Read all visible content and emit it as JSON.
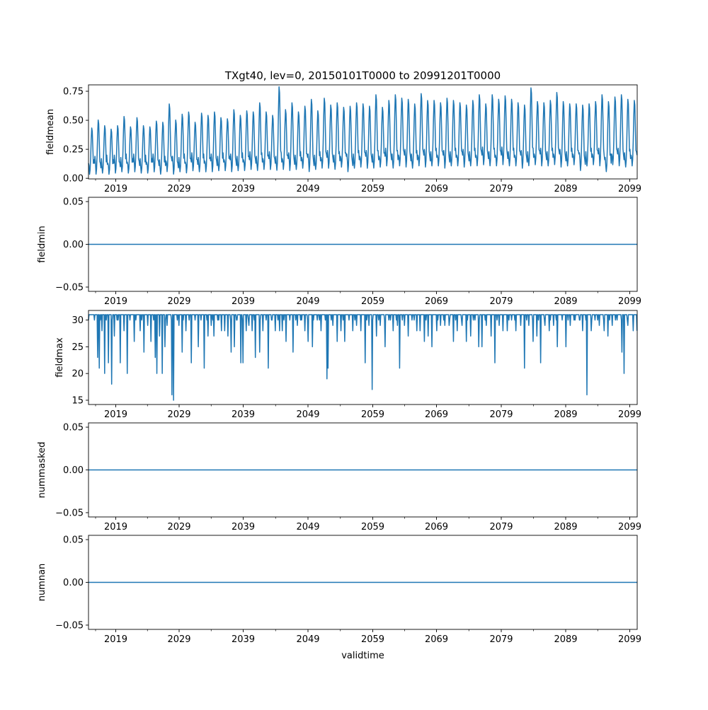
{
  "chart_data": {
    "type": "line",
    "title": "TXgt40, lev=0, 20150101T0000 to 20991201T0000",
    "xlabel": "validtime",
    "x_start": "2015-01",
    "x_end": "2099-12",
    "x_frequency": "monthly",
    "x_tick_labels": [
      "2019",
      "2029",
      "2039",
      "2049",
      "2059",
      "2069",
      "2079",
      "2089",
      "2099"
    ],
    "line_color": "#1f77b4",
    "grid": false,
    "panels": [
      {
        "ylabel": "fieldmean",
        "ylim": [
          -0.005,
          0.805
        ],
        "yticks": [
          "0.00",
          "0.25",
          "0.50",
          "0.75"
        ],
        "yticks_values": [
          0,
          0.25,
          0.5,
          0.75
        ],
        "series": [
          {
            "name": "fieldmean",
            "annual_peaks": [
              0.44,
              0.51,
              0.46,
              0.43,
              0.46,
              0.54,
              0.45,
              0.53,
              0.46,
              0.45,
              0.5,
              0.49,
              0.65,
              0.51,
              0.56,
              0.58,
              0.49,
              0.57,
              0.55,
              0.58,
              0.53,
              0.52,
              0.6,
              0.55,
              0.59,
              0.58,
              0.66,
              0.58,
              0.55,
              0.8,
              0.6,
              0.66,
              0.58,
              0.63,
              0.69,
              0.59,
              0.7,
              0.64,
              0.66,
              0.62,
              0.63,
              0.66,
              0.65,
              0.63,
              0.73,
              0.62,
              0.68,
              0.73,
              0.7,
              0.69,
              0.65,
              0.74,
              0.68,
              0.68,
              0.66,
              0.7,
              0.68,
              0.66,
              0.64,
              0.68,
              0.73,
              0.65,
              0.73,
              0.69,
              0.72,
              0.69,
              0.66,
              0.64,
              0.79,
              0.67,
              0.66,
              0.68,
              0.75,
              0.67,
              0.65,
              0.65,
              0.64,
              0.65,
              0.67,
              0.73,
              0.67,
              0.71,
              0.73,
              0.69,
              0.68
            ],
            "annual_troughs": [
              0.03,
              0.03,
              0.04,
              0.03,
              0.04,
              0.05,
              0.04,
              0.05,
              0.04,
              0.04,
              0.05,
              0.03,
              0.05,
              0.03,
              0.05,
              0.04,
              0.06,
              0.05,
              0.05,
              0.05,
              0.06,
              0.06,
              0.05,
              0.06,
              0.06,
              0.07,
              0.06,
              0.07,
              0.07,
              0.06,
              0.07,
              0.06,
              0.07,
              0.08,
              0.05,
              0.07,
              0.08,
              0.08,
              0.07,
              0.09,
              0.05,
              0.08,
              0.09,
              0.08,
              0.08,
              0.09,
              0.1,
              0.08,
              0.1,
              0.09,
              0.08,
              0.1,
              0.09,
              0.1,
              0.1,
              0.08,
              0.1,
              0.1,
              0.09,
              0.1,
              0.1,
              0.11,
              0.1,
              0.1,
              0.11,
              0.1,
              0.1,
              0.08,
              0.1,
              0.11,
              0.1,
              0.1,
              0.11,
              0.09,
              0.1,
              0.11,
              0.06,
              0.1,
              0.11,
              0.1,
              0.05,
              0.11,
              0.1,
              0.09,
              0.1
            ]
          }
        ]
      },
      {
        "ylabel": "fieldmin",
        "ylim": [
          -0.055,
          0.055
        ],
        "yticks": [
          "−0.05",
          "0.00",
          "0.05"
        ],
        "yticks_values": [
          -0.05,
          0,
          0.05
        ],
        "series": [
          {
            "name": "fieldmin",
            "constant": 0
          }
        ]
      },
      {
        "ylabel": "fieldmax",
        "ylim": [
          14.2,
          31.8
        ],
        "yticks": [
          "15",
          "20",
          "25",
          "30"
        ],
        "yticks_values": [
          15,
          20,
          25,
          30
        ],
        "series": [
          {
            "name": "fieldmax",
            "baseline": 31,
            "dips": [
              [
                2016.4,
                23
              ],
              [
                2016.7,
                21
              ],
              [
                2017.1,
                28
              ],
              [
                2017.5,
                20
              ],
              [
                2018.1,
                22
              ],
              [
                2018.6,
                18
              ],
              [
                2019.0,
                27
              ],
              [
                2019.4,
                30
              ],
              [
                2019.9,
                22
              ],
              [
                2020.5,
                28
              ],
              [
                2021.0,
                20
              ],
              [
                2022.1,
                26
              ],
              [
                2023.0,
                28
              ],
              [
                2023.6,
                24
              ],
              [
                2024.2,
                29
              ],
              [
                2024.7,
                26
              ],
              [
                2025.3,
                23
              ],
              [
                2025.6,
                20
              ],
              [
                2026.0,
                27
              ],
              [
                2026.4,
                20
              ],
              [
                2026.8,
                25
              ],
              [
                2027.2,
                29
              ],
              [
                2027.9,
                16
              ],
              [
                2028.2,
                15
              ],
              [
                2029.0,
                29
              ],
              [
                2029.5,
                24
              ],
              [
                2030.1,
                28
              ],
              [
                2030.9,
                22
              ],
              [
                2031.5,
                30
              ],
              [
                2032.0,
                25
              ],
              [
                2032.9,
                21
              ],
              [
                2033.5,
                27
              ],
              [
                2034.0,
                29
              ],
              [
                2034.4,
                27
              ],
              [
                2035.0,
                30
              ],
              [
                2035.6,
                28
              ],
              [
                2036.1,
                28
              ],
              [
                2036.6,
                27
              ],
              [
                2037.1,
                24
              ],
              [
                2037.6,
                25
              ],
              [
                2038.0,
                30
              ],
              [
                2038.6,
                22
              ],
              [
                2038.9,
                22
              ],
              [
                2039.4,
                28
              ],
              [
                2039.8,
                29
              ],
              [
                2040.3,
                28
              ],
              [
                2040.8,
                23
              ],
              [
                2041.5,
                24
              ],
              [
                2042.0,
                28
              ],
              [
                2042.8,
                21
              ],
              [
                2043.3,
                30
              ],
              [
                2043.9,
                28
              ],
              [
                2044.6,
                28
              ],
              [
                2045.0,
                28
              ],
              [
                2045.6,
                26
              ],
              [
                2046.2,
                30
              ],
              [
                2046.7,
                24
              ],
              [
                2047.3,
                29
              ],
              [
                2047.8,
                30
              ],
              [
                2048.5,
                28
              ],
              [
                2049.0,
                26
              ],
              [
                2049.7,
                25
              ],
              [
                2050.4,
                30
              ],
              [
                2051.0,
                28
              ],
              [
                2051.9,
                19
              ],
              [
                2052.1,
                21
              ],
              [
                2052.8,
                29
              ],
              [
                2053.5,
                26
              ],
              [
                2054.1,
                28
              ],
              [
                2054.7,
                26
              ],
              [
                2055.3,
                30
              ],
              [
                2055.9,
                28
              ],
              [
                2056.5,
                29
              ],
              [
                2057.2,
                28
              ],
              [
                2057.8,
                22
              ],
              [
                2058.4,
                29
              ],
              [
                2058.9,
                17
              ],
              [
                2059.6,
                27
              ],
              [
                2060.2,
                29
              ],
              [
                2060.9,
                25
              ],
              [
                2061.5,
                30
              ],
              [
                2062.2,
                28
              ],
              [
                2062.8,
                29
              ],
              [
                2063.2,
                21
              ],
              [
                2063.9,
                29
              ],
              [
                2064.5,
                27
              ],
              [
                2065.1,
                30
              ],
              [
                2065.8,
                28
              ],
              [
                2066.3,
                28
              ],
              [
                2067.0,
                26
              ],
              [
                2067.6,
                27
              ],
              [
                2068.2,
                25
              ],
              [
                2068.9,
                28
              ],
              [
                2069.5,
                29
              ],
              [
                2070.2,
                29
              ],
              [
                2070.8,
                29
              ],
              [
                2071.5,
                26
              ],
              [
                2072.1,
                28
              ],
              [
                2072.8,
                29
              ],
              [
                2073.5,
                26
              ],
              [
                2074.2,
                27
              ],
              [
                2074.8,
                30
              ],
              [
                2075.4,
                25
              ],
              [
                2075.9,
                25
              ],
              [
                2076.6,
                29
              ],
              [
                2077.3,
                27
              ],
              [
                2077.9,
                22
              ],
              [
                2078.6,
                29
              ],
              [
                2079.2,
                28
              ],
              [
                2079.8,
                28
              ],
              [
                2080.5,
                30
              ],
              [
                2081.2,
                28
              ],
              [
                2081.9,
                29
              ],
              [
                2082.5,
                21
              ],
              [
                2083.2,
                29
              ],
              [
                2083.8,
                26
              ],
              [
                2084.4,
                27
              ],
              [
                2085.0,
                22
              ],
              [
                2085.7,
                29
              ],
              [
                2086.3,
                28
              ],
              [
                2087.0,
                29
              ],
              [
                2087.6,
                25
              ],
              [
                2088.3,
                30
              ],
              [
                2088.9,
                25
              ],
              [
                2089.6,
                29
              ],
              [
                2090.3,
                30
              ],
              [
                2091.0,
                30
              ],
              [
                2091.5,
                28
              ],
              [
                2092.2,
                16
              ],
              [
                2092.8,
                28
              ],
              [
                2093.4,
                30
              ],
              [
                2094.1,
                29
              ],
              [
                2094.8,
                28
              ],
              [
                2095.4,
                27
              ],
              [
                2096.1,
                29
              ],
              [
                2096.8,
                30
              ],
              [
                2097.6,
                24
              ],
              [
                2097.9,
                20
              ],
              [
                2098.5,
                29
              ],
              [
                2099.3,
                28
              ],
              [
                2099.9,
                28
              ]
            ]
          }
        ]
      },
      {
        "ylabel": "nummasked",
        "ylim": [
          -0.055,
          0.055
        ],
        "yticks": [
          "−0.05",
          "0.00",
          "0.05"
        ],
        "yticks_values": [
          -0.05,
          0,
          0.05
        ],
        "series": [
          {
            "name": "nummasked",
            "constant": 0
          }
        ]
      },
      {
        "ylabel": "numnan",
        "ylim": [
          -0.055,
          0.055
        ],
        "yticks": [
          "−0.05",
          "0.00",
          "0.05"
        ],
        "yticks_values": [
          -0.05,
          0,
          0.05
        ],
        "series": [
          {
            "name": "numnan",
            "constant": 0
          }
        ]
      }
    ]
  }
}
